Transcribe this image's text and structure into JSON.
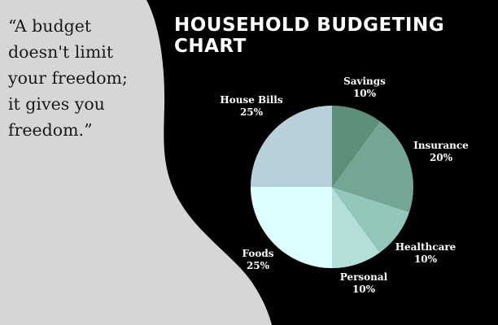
{
  "quote": {
    "lines": [
      "“A budget",
      "doesn't limit",
      "your freedom;",
      "it gives you",
      "freedom.”"
    ]
  },
  "title": {
    "line1": "HOUSEHOLD BUDGETING",
    "line2": "CHART"
  },
  "colors": {
    "background_dark": "#000000",
    "background_light": "#d6d6d6",
    "savings": "#5e8f78",
    "insurance": "#74a793",
    "healthcare": "#94c7bb",
    "personal": "#b3dfda",
    "foods": "#ddffff",
    "house_bills": "#b8d0d8"
  },
  "chart_data": {
    "type": "pie",
    "title": "HOUSEHOLD BUDGETING CHART",
    "slices": [
      {
        "label": "Savings",
        "value": 10,
        "display": "10%",
        "color": "#5e8f78"
      },
      {
        "label": "Insurance",
        "value": 20,
        "display": "20%",
        "color": "#74a793"
      },
      {
        "label": "Healthcare",
        "value": 10,
        "display": "10%",
        "color": "#94c7bb"
      },
      {
        "label": "Personal",
        "value": 10,
        "display": "10%",
        "color": "#b3dfda"
      },
      {
        "label": "Foods",
        "value": 25,
        "display": "25%",
        "color": "#ddffff"
      },
      {
        "label": "House Bills",
        "value": 25,
        "display": "25%",
        "color": "#b8d0d8"
      }
    ],
    "start": "12 o'clock",
    "direction": "clockwise",
    "legend": "none (labels outside slices)"
  }
}
